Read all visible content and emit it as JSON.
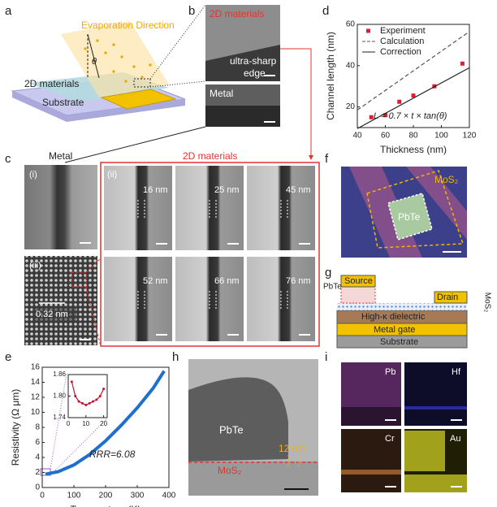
{
  "panels": {
    "a": {
      "label": "a",
      "evaporation": "Evaporation Direction",
      "theta": "θ",
      "material": "2D materials",
      "substrate": "Substrate"
    },
    "b": {
      "label": "b",
      "material": "2D materials",
      "edge": [
        "ultra-sharp",
        "edge"
      ],
      "metal": "Metal"
    },
    "c": {
      "label": "c",
      "metal_title": "Metal",
      "material_title": "2D materials",
      "image_i": "(i)",
      "image_ii": "(ii)",
      "image_iii": "(iii)",
      "lattice": "0.32 nm",
      "widths": [
        "16 nm",
        "25 nm",
        "45 nm",
        "52 nm",
        "66 nm",
        "76 nm"
      ]
    },
    "d": {
      "label": "d"
    },
    "e": {
      "label": "e"
    },
    "f": {
      "label": "f",
      "mos2": "MoS₂",
      "pbte": "PbTe"
    },
    "g": {
      "label": "g",
      "source": "Source",
      "drain": "Drain",
      "pbte": "PbTe",
      "mos2": "MoS₂",
      "dielectric": "High-κ dielectric",
      "gate": "Metal gate",
      "substrate": "Substrate"
    },
    "h": {
      "label": "h",
      "pbte": "PbTe",
      "gap": "12 nm",
      "mos2": "MoS₂"
    },
    "i": {
      "label": "i",
      "maps": [
        "Pb",
        "Hf",
        "Cr",
        "Au"
      ]
    }
  },
  "chart_data": [
    {
      "type": "scatter",
      "xlabel": "Thickness (nm)",
      "ylabel": "Channel length (nm)",
      "annotation": "L = 0.7 × t × tan(θ)",
      "xlim": [
        40,
        120
      ],
      "xticks": [
        40,
        60,
        80,
        100,
        120
      ],
      "ylim": [
        10,
        60
      ],
      "yticks": [
        20,
        40,
        60
      ],
      "legend": "upper left",
      "series": [
        {
          "name": "Experiment",
          "color": "#e8192c",
          "marker": "square",
          "x": [
            50,
            60,
            70,
            80,
            95,
            115
          ],
          "values": [
            15,
            16,
            22.5,
            25.5,
            30,
            41
          ]
        },
        {
          "name": "Calculation",
          "color": "#555555",
          "line": "dashed",
          "x": [
            40,
            120
          ],
          "values": [
            18.5,
            56.5
          ]
        },
        {
          "name": "Correction",
          "color": "#222222",
          "line": "solid",
          "x": [
            40,
            120
          ],
          "values": [
            9.5,
            39
          ]
        }
      ]
    },
    {
      "type": "line",
      "xlabel": "Temperature (K)",
      "ylabel": "Resistivity (Ω μm)",
      "annotation": "RRR=6.08",
      "xlim": [
        0,
        400
      ],
      "xticks": [
        0,
        100,
        200,
        300,
        400
      ],
      "ylim": [
        0,
        16
      ],
      "yticks": [
        0,
        2,
        4,
        6,
        8,
        10,
        12,
        14,
        16
      ],
      "series": [
        {
          "color": "#1f6fd1",
          "line": "solid",
          "x": [
            10,
            50,
            100,
            150,
            200,
            250,
            300,
            350,
            385
          ],
          "values": [
            1.78,
            2.1,
            3.0,
            4.4,
            6.2,
            8.3,
            10.6,
            13.2,
            15.5
          ]
        }
      ]
    },
    {
      "type": "line",
      "xlim": [
        0,
        22
      ],
      "xticks": [
        0,
        10,
        20
      ],
      "ylim": [
        1.74,
        1.86
      ],
      "yticks": [
        {
          "value": 1.74,
          "label": "1.74"
        },
        {
          "value": 1.8,
          "label": "1.80"
        },
        {
          "value": 1.86,
          "label": "1.86"
        }
      ],
      "series": [
        {
          "color": "#c8102e",
          "line": "solid",
          "marker": "circle",
          "x": [
            2,
            4,
            6,
            8,
            10,
            12,
            14,
            16,
            18,
            20
          ],
          "values": [
            1.84,
            1.8,
            1.785,
            1.78,
            1.775,
            1.78,
            1.785,
            1.79,
            1.8,
            1.82
          ]
        }
      ]
    }
  ]
}
